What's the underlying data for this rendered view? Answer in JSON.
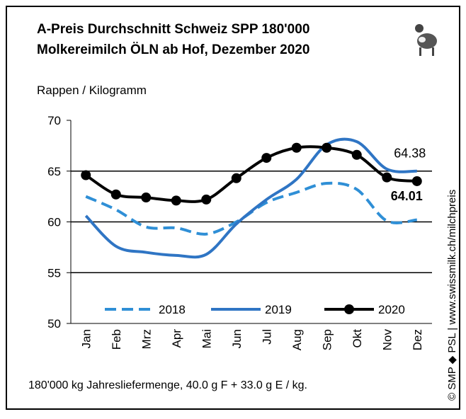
{
  "chart_data": {
    "type": "line",
    "title": "A-Preis Durchschnitt Schweiz SPP 180'000",
    "subtitle": "Molkereimilch ÖLN ab Hof, Dezember 2020",
    "y_label": "Rappen / Kilogramm",
    "footnote": "180'000 kg Jahresliefermenge, 40.0 g F + 33.0 g E / kg.",
    "source": "© SMP ◆ PSL | www.swissmilk.ch/milchpreis",
    "categories": [
      "Jan",
      "Feb",
      "Mrz",
      "Apr",
      "Mai",
      "Jun",
      "Jul",
      "Aug",
      "Sep",
      "Okt",
      "Nov",
      "Dez"
    ],
    "series": [
      {
        "name": "2018",
        "color": "#2f8fd6",
        "dash": true,
        "values": [
          62.5,
          61.2,
          59.5,
          59.4,
          58.8,
          60.0,
          61.9,
          62.9,
          63.8,
          63.2,
          60.1,
          60.2
        ]
      },
      {
        "name": "2019",
        "color": "#2f75c4",
        "dash": false,
        "values": [
          60.6,
          57.6,
          57.0,
          56.7,
          56.8,
          59.8,
          62.2,
          64.2,
          67.6,
          67.9,
          65.2,
          65.0
        ]
      },
      {
        "name": "2020",
        "color": "#000000",
        "dash": false,
        "markers": true,
        "values": [
          64.6,
          62.7,
          62.4,
          62.1,
          62.2,
          64.3,
          66.3,
          67.3,
          67.3,
          66.6,
          64.38,
          64.01
        ],
        "value_labels": [
          null,
          null,
          null,
          null,
          null,
          null,
          null,
          null,
          null,
          null,
          "64.38",
          "64.01"
        ]
      }
    ],
    "ylim": [
      50,
      70
    ],
    "yticks": [
      50,
      55,
      60,
      65,
      70
    ],
    "grid": true
  }
}
